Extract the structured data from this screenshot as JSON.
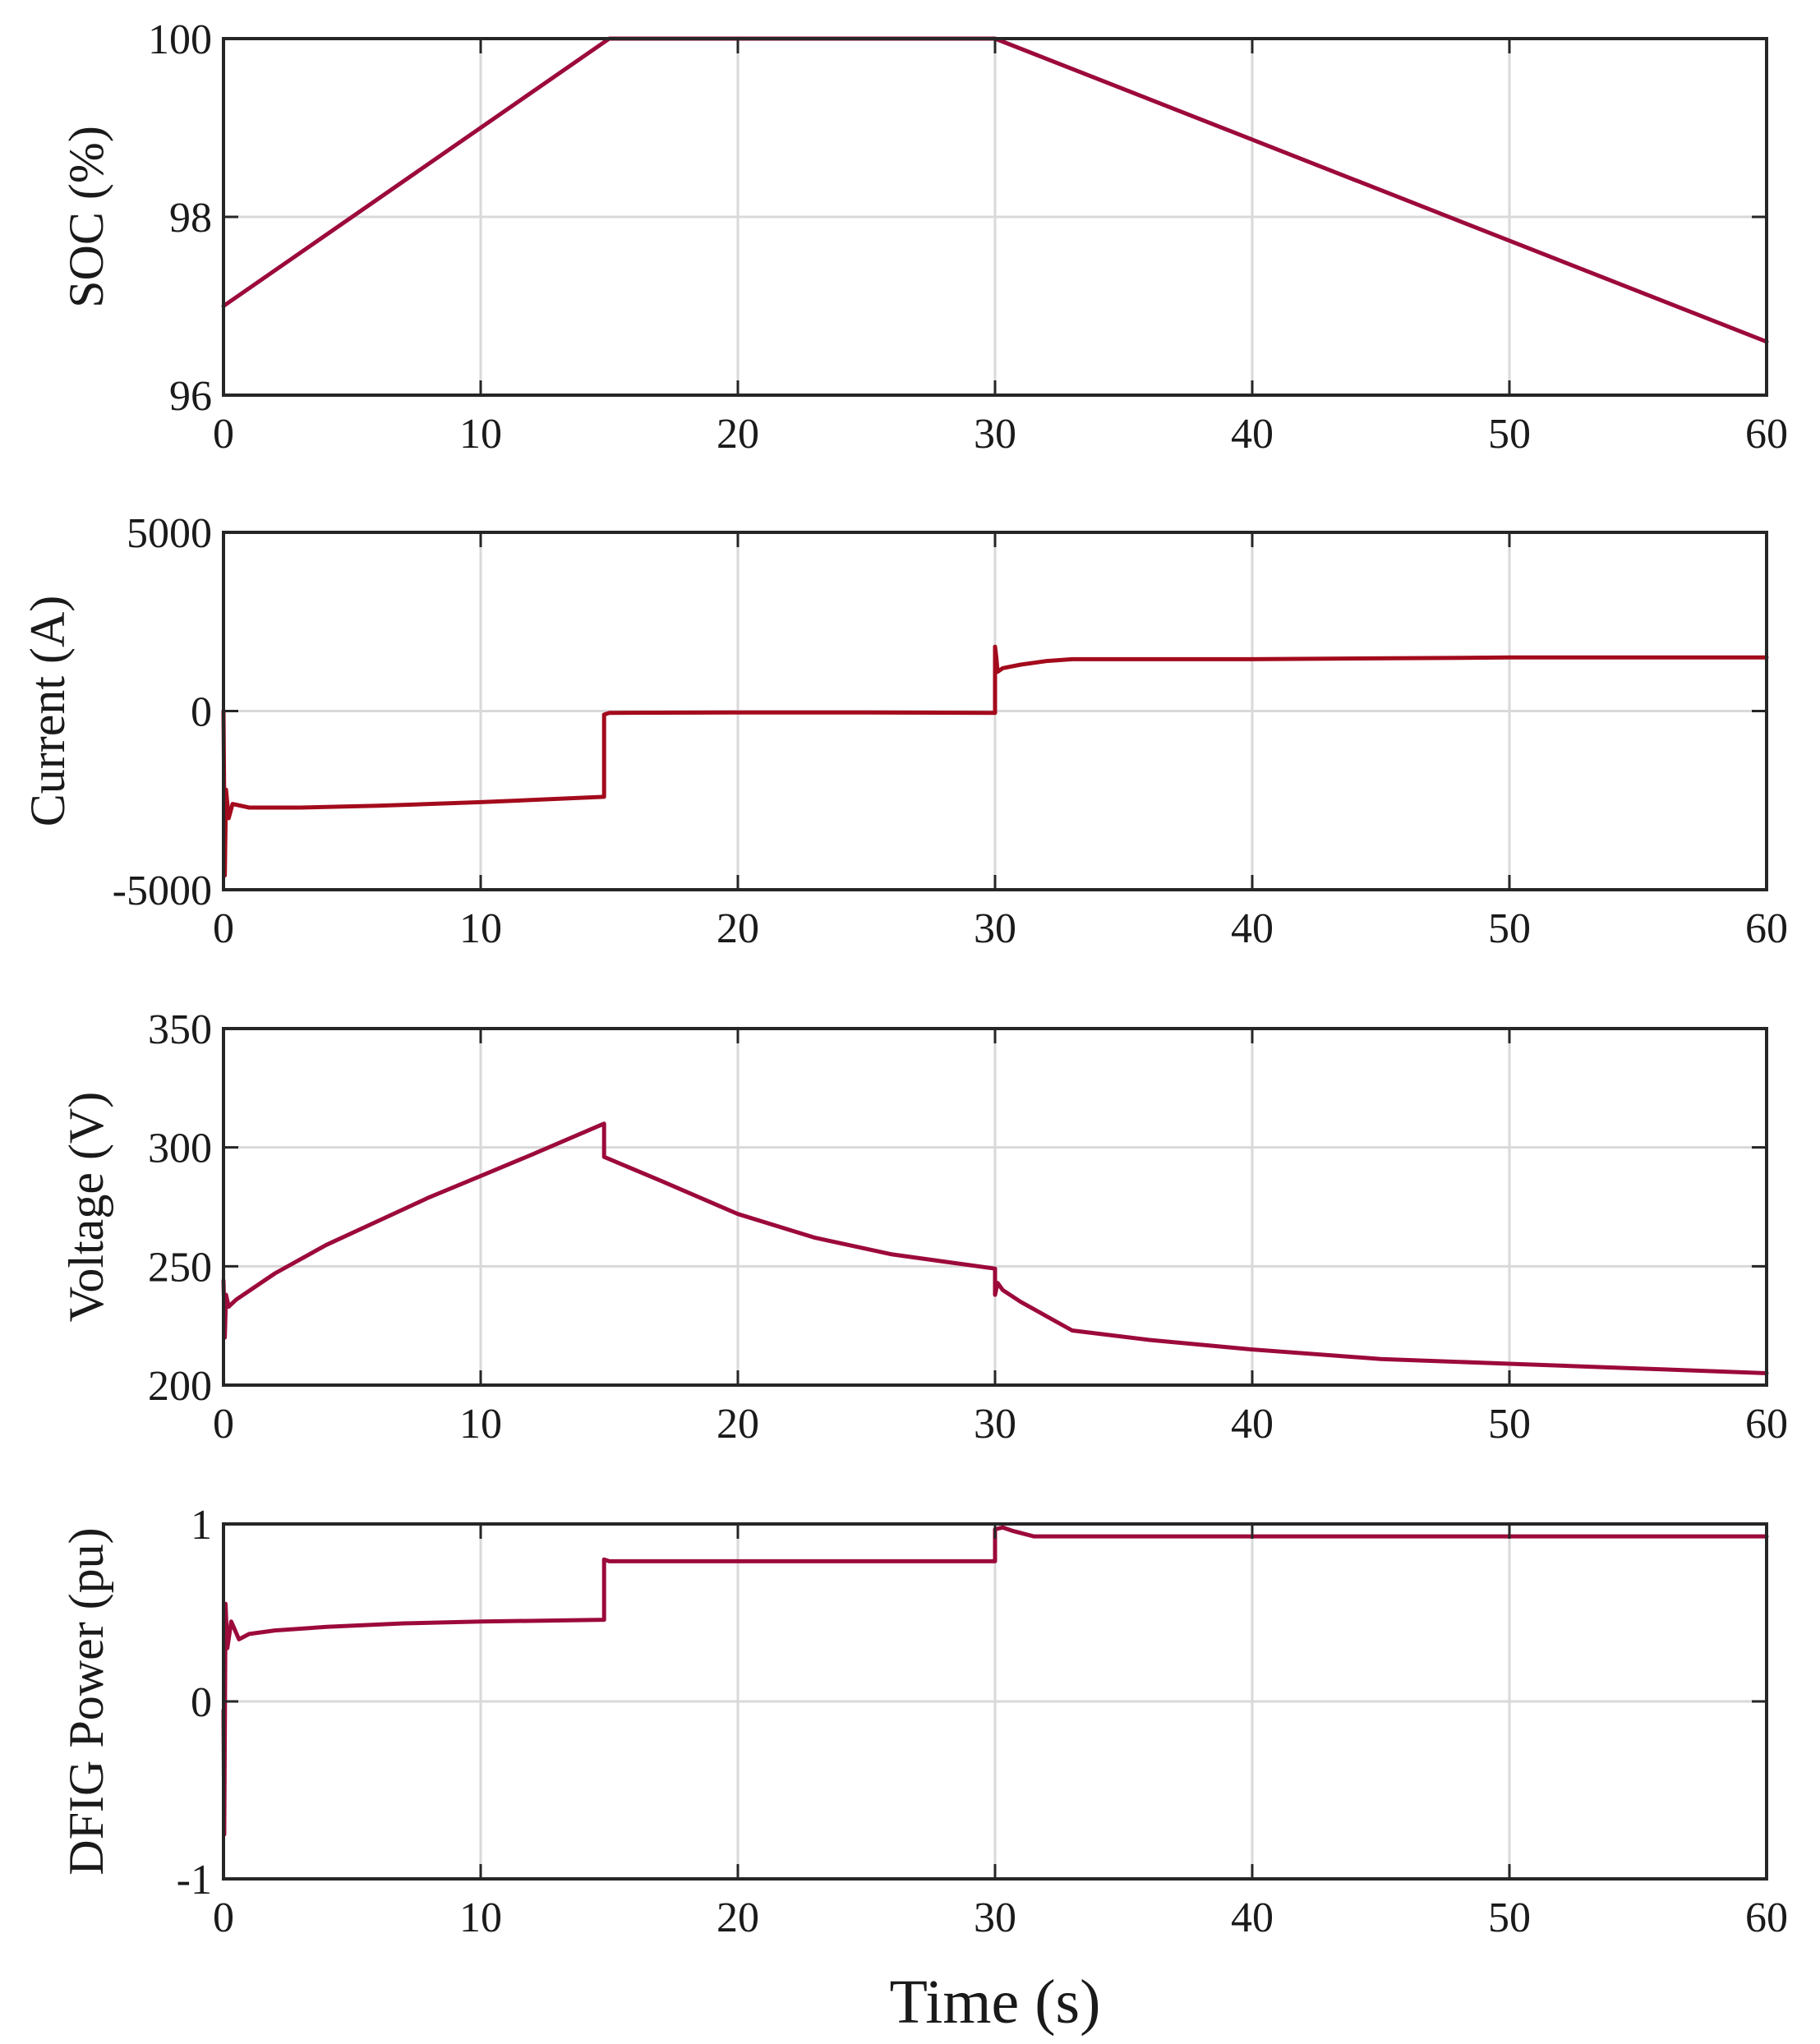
{
  "chart_data": [
    {
      "type": "line",
      "ylabel": "SOC (%)",
      "xlabel": "",
      "xlim": [
        0,
        60
      ],
      "ylim": [
        96,
        100
      ],
      "xticks": [
        0,
        10,
        20,
        30,
        40,
        50,
        60
      ],
      "yticks": [
        96,
        98,
        100
      ],
      "color": "#9c0a3a",
      "series": [
        {
          "name": "SOC",
          "x": [
            0,
            15,
            30,
            60
          ],
          "y": [
            97.0,
            100.0,
            100.0,
            96.6
          ]
        }
      ]
    },
    {
      "type": "line",
      "ylabel": "Current (A)",
      "xlabel": "",
      "xlim": [
        0,
        60
      ],
      "ylim": [
        -5000,
        5000
      ],
      "xticks": [
        0,
        10,
        20,
        30,
        40,
        50,
        60
      ],
      "yticks": [
        -5000,
        0,
        5000
      ],
      "color": "#a30b1c",
      "series": [
        {
          "name": "Current",
          "x": [
            0,
            0.05,
            0.1,
            0.2,
            0.35,
            1,
            3,
            6,
            10,
            14.8,
            14.8,
            15,
            20,
            25,
            30,
            30,
            30.05,
            30.1,
            30.3,
            31,
            32,
            33,
            35,
            40,
            50,
            60
          ],
          "y": [
            0,
            -4600,
            -2200,
            -3000,
            -2600,
            -2700,
            -2700,
            -2650,
            -2550,
            -2400,
            -100,
            -50,
            -40,
            -40,
            -50,
            1800,
            1500,
            1100,
            1200,
            1300,
            1400,
            1450,
            1450,
            1450,
            1500,
            1500
          ]
        }
      ]
    },
    {
      "type": "line",
      "ylabel": "Voltage (V)",
      "xlabel": "",
      "xlim": [
        0,
        60
      ],
      "ylim": [
        200,
        350
      ],
      "xticks": [
        0,
        10,
        20,
        30,
        40,
        50,
        60
      ],
      "yticks": [
        200,
        250,
        300,
        350
      ],
      "color": "#9c0a3a",
      "series": [
        {
          "name": "Voltage",
          "x": [
            0,
            0.05,
            0.1,
            0.2,
            0.5,
            2,
            4,
            6,
            8,
            10,
            12,
            14.8,
            14.8,
            17,
            20,
            23,
            26,
            30,
            30,
            30.1,
            30.3,
            31,
            33,
            36,
            40,
            45,
            50,
            55,
            60
          ],
          "y": [
            244,
            220,
            238,
            233,
            236,
            247,
            259,
            269,
            279,
            288,
            297,
            310,
            296,
            286,
            272,
            262,
            255,
            249,
            238,
            243,
            240,
            235,
            223,
            219,
            215,
            211,
            209,
            207,
            205
          ]
        }
      ]
    },
    {
      "type": "line",
      "ylabel": "DFIG Power (pu)",
      "xlabel": "Time (s)",
      "xlim": [
        0,
        60
      ],
      "ylim": [
        -1,
        1
      ],
      "xticks": [
        0,
        10,
        20,
        30,
        40,
        50,
        60
      ],
      "yticks": [
        -1,
        0,
        1
      ],
      "color": "#9c0a3a",
      "series": [
        {
          "name": "DFIG Power",
          "x": [
            0,
            0.03,
            0.08,
            0.15,
            0.3,
            0.6,
            1,
            2,
            4,
            7,
            10,
            14.8,
            14.8,
            15,
            20,
            25,
            30,
            30,
            30.3,
            30.7,
            31.5,
            33,
            40,
            50,
            60
          ],
          "y": [
            -0.05,
            -0.75,
            0.55,
            0.3,
            0.45,
            0.35,
            0.38,
            0.4,
            0.42,
            0.44,
            0.45,
            0.46,
            0.8,
            0.79,
            0.79,
            0.79,
            0.79,
            0.97,
            0.98,
            0.96,
            0.93,
            0.93,
            0.93,
            0.93,
            0.93
          ]
        }
      ]
    }
  ]
}
